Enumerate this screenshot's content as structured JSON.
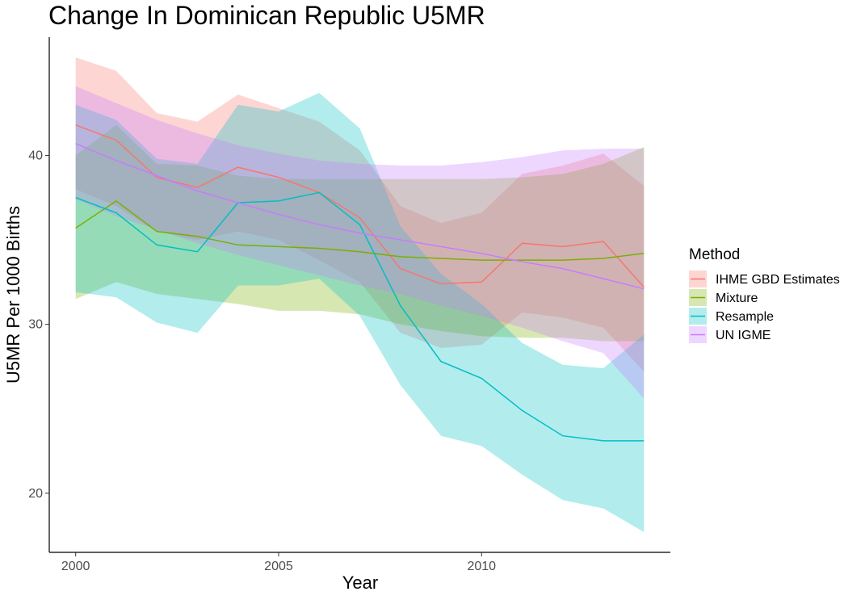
{
  "chart_data": {
    "type": "line",
    "title": "Change In Dominican Republic U5MR",
    "xlabel": "Year",
    "ylabel": "U5MR Per 1000 Births",
    "xlim": [
      1999.35,
      2014.65
    ],
    "ylim": [
      16.5,
      47.0
    ],
    "x_ticks": [
      2000,
      2005,
      2010
    ],
    "y_ticks": [
      20,
      30,
      40
    ],
    "legend": {
      "title": "Method",
      "position": "right"
    },
    "x": [
      2000,
      2001,
      2002,
      2003,
      2004,
      2005,
      2006,
      2007,
      2008,
      2009,
      2010,
      2011,
      2012,
      2013,
      2014
    ],
    "series": [
      {
        "name": "IHME GBD Estimates",
        "color": "#F8766D",
        "values": [
          41.8,
          40.9,
          38.7,
          38.1,
          39.3,
          38.7,
          37.8,
          36.3,
          33.3,
          32.4,
          32.5,
          34.8,
          34.6,
          34.9,
          32.2
        ],
        "lower": [
          38.0,
          37.0,
          35.5,
          35.0,
          35.5,
          35.0,
          33.8,
          32.5,
          29.5,
          28.6,
          28.8,
          30.7,
          30.4,
          29.8,
          27.2
        ],
        "upper": [
          45.8,
          45.0,
          42.5,
          42.0,
          43.6,
          42.8,
          42.0,
          40.3,
          37.0,
          36.0,
          36.6,
          38.9,
          39.4,
          40.1,
          38.2
        ]
      },
      {
        "name": "Mixture",
        "color": "#7CAE00",
        "values": [
          35.7,
          37.3,
          35.5,
          35.2,
          34.7,
          34.6,
          34.5,
          34.3,
          34.0,
          33.9,
          33.8,
          33.8,
          33.8,
          33.9,
          34.2
        ],
        "lower": [
          31.5,
          32.5,
          31.8,
          31.5,
          31.2,
          30.8,
          30.8,
          30.6,
          30.0,
          29.6,
          29.3,
          29.2,
          29.2,
          29.0,
          29.0
        ],
        "upper": [
          40.0,
          41.8,
          39.5,
          39.4,
          38.8,
          38.6,
          38.6,
          38.6,
          38.6,
          38.6,
          38.6,
          38.7,
          38.9,
          39.5,
          40.5
        ]
      },
      {
        "name": "Resample",
        "color": "#00BFC4",
        "values": [
          37.5,
          36.6,
          34.7,
          34.3,
          37.2,
          37.3,
          37.8,
          35.9,
          31.1,
          27.8,
          26.8,
          24.9,
          23.4,
          23.1,
          23.1
        ],
        "lower": [
          31.9,
          31.6,
          30.1,
          29.5,
          32.3,
          32.3,
          32.7,
          30.5,
          26.4,
          23.4,
          22.8,
          21.1,
          19.6,
          19.1,
          17.7
        ],
        "upper": [
          43.0,
          42.1,
          39.8,
          39.5,
          43.0,
          42.6,
          43.7,
          41.6,
          35.8,
          33.0,
          31.2,
          28.9,
          27.6,
          27.4,
          29.4
        ]
      },
      {
        "name": "UN IGME",
        "color": "#C77CFF",
        "values": [
          40.7,
          39.7,
          38.8,
          37.9,
          37.2,
          36.5,
          35.9,
          35.4,
          35.0,
          34.6,
          34.2,
          33.7,
          33.3,
          32.7,
          32.1
        ],
        "lower": [
          37.4,
          36.4,
          35.6,
          34.8,
          34.1,
          33.5,
          32.9,
          32.3,
          31.8,
          31.1,
          30.5,
          29.8,
          29.0,
          28.3,
          25.6
        ],
        "upper": [
          44.1,
          43.1,
          42.1,
          41.3,
          40.6,
          40.1,
          39.7,
          39.5,
          39.4,
          39.4,
          39.6,
          39.9,
          40.3,
          40.4,
          40.4
        ]
      }
    ]
  }
}
